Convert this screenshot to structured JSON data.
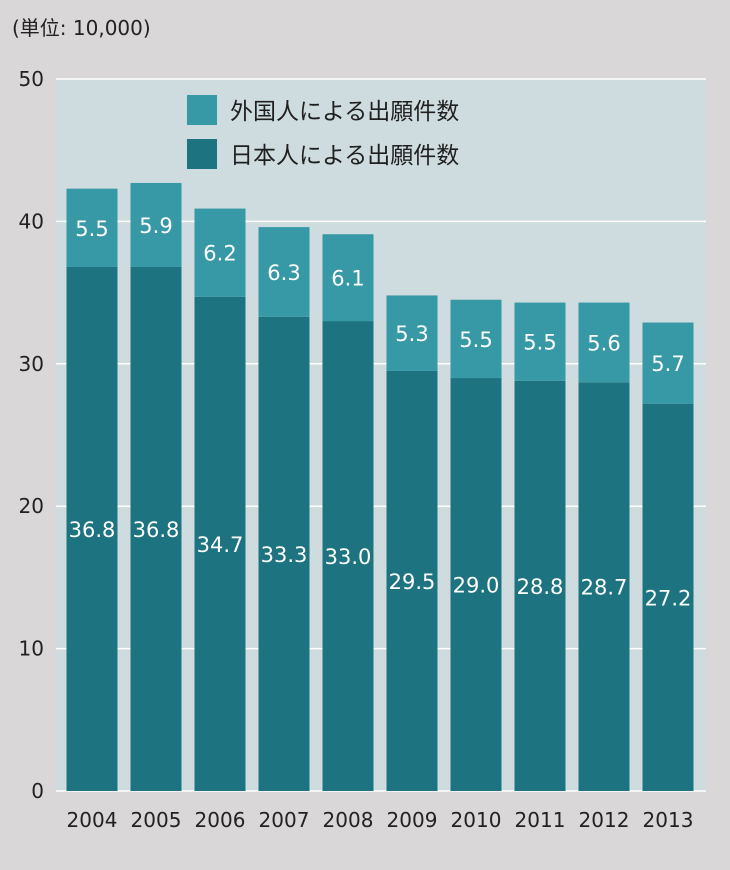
{
  "chart_data": {
    "type": "bar",
    "stacked": true,
    "unit_label": "(単位: 10,000)",
    "categories": [
      "2004",
      "2005",
      "2006",
      "2007",
      "2008",
      "2009",
      "2010",
      "2011",
      "2012",
      "2013"
    ],
    "series": [
      {
        "name": "日本人による出願件数",
        "color": "#1d7480",
        "values": [
          36.8,
          36.8,
          34.7,
          33.3,
          33.0,
          29.5,
          29.0,
          28.8,
          28.7,
          27.2
        ]
      },
      {
        "name": "外国人による出願件数",
        "color": "#3799a5",
        "values": [
          5.5,
          5.9,
          6.2,
          6.3,
          6.1,
          5.3,
          5.5,
          5.5,
          5.6,
          5.7
        ]
      }
    ],
    "ylim": [
      0,
      50
    ],
    "yticks": [
      0,
      10,
      20,
      30,
      40,
      50
    ],
    "grid": true,
    "legend_position": "top",
    "plot_background": "#cfdcdf",
    "gridline_color": "#ffffff"
  }
}
